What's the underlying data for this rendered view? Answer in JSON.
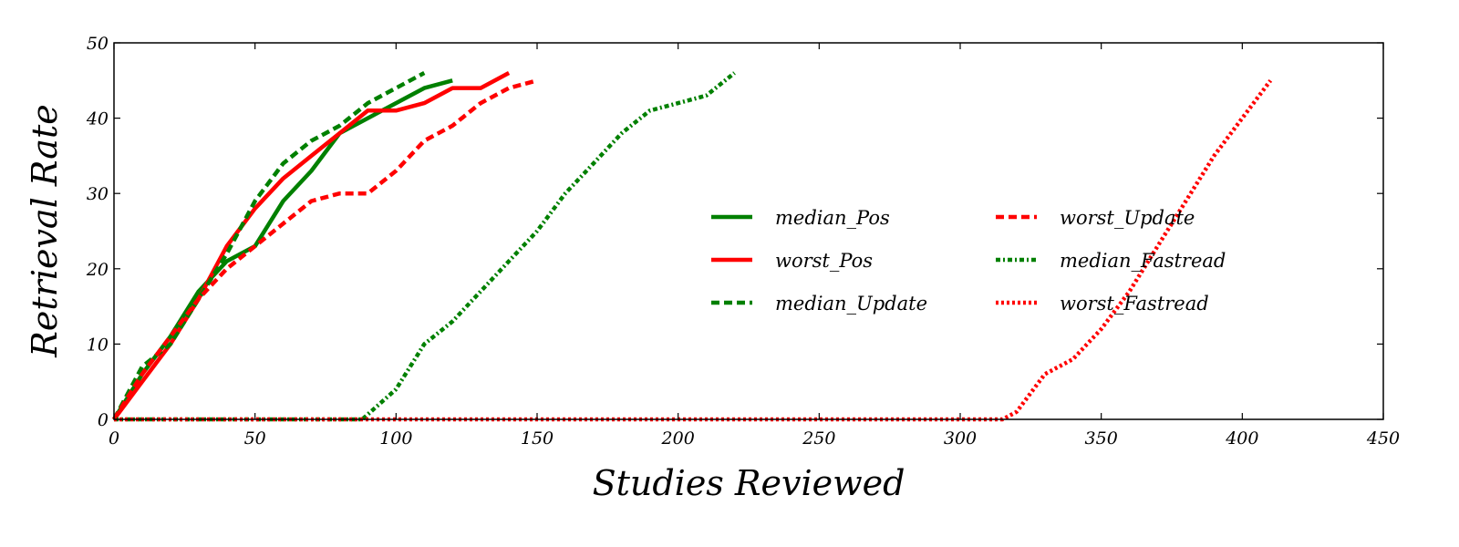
{
  "chart_data": {
    "type": "line",
    "title": "",
    "xlabel": "Studies Reviewed",
    "ylabel": "Retrieval Rate",
    "xlim": [
      0,
      450
    ],
    "ylim": [
      0,
      50
    ],
    "xticks": [
      0,
      50,
      100,
      150,
      200,
      250,
      300,
      350,
      400,
      450
    ],
    "yticks": [
      0,
      10,
      20,
      30,
      40,
      50
    ],
    "grid": false,
    "legend_position": "center-right",
    "legend_columns": 2,
    "series": [
      {
        "name": "median_Pos",
        "color": "#008000",
        "style": "solid",
        "x": [
          0,
          10,
          20,
          30,
          40,
          50,
          60,
          70,
          80,
          90,
          100,
          110,
          120
        ],
        "y": [
          0,
          6,
          11,
          17,
          21,
          23,
          29,
          33,
          38,
          40,
          42,
          44,
          45
        ]
      },
      {
        "name": "worst_Pos",
        "color": "#ff0000",
        "style": "solid",
        "x": [
          0,
          10,
          20,
          30,
          40,
          50,
          60,
          70,
          80,
          90,
          100,
          110,
          120,
          130,
          140
        ],
        "y": [
          0,
          5,
          10,
          16,
          23,
          28,
          32,
          35,
          38,
          41,
          41,
          42,
          44,
          44,
          46
        ]
      },
      {
        "name": "median_Update",
        "color": "#008000",
        "style": "dashed",
        "x": [
          0,
          10,
          20,
          30,
          40,
          50,
          60,
          70,
          80,
          90,
          100,
          110
        ],
        "y": [
          0,
          7,
          10,
          16,
          22,
          29,
          34,
          37,
          39,
          42,
          44,
          46
        ]
      },
      {
        "name": "worst_Update",
        "color": "#ff0000",
        "style": "dashed",
        "x": [
          0,
          10,
          20,
          30,
          40,
          50,
          60,
          70,
          80,
          90,
          100,
          110,
          120,
          130,
          140,
          150
        ],
        "y": [
          0,
          6,
          11,
          16,
          20,
          23,
          26,
          29,
          30,
          30,
          33,
          37,
          39,
          42,
          44,
          45
        ]
      },
      {
        "name": "median_Fastread",
        "color": "#008000",
        "style": "dashdot",
        "x": [
          0,
          80,
          88,
          100,
          110,
          120,
          130,
          140,
          150,
          160,
          170,
          180,
          190,
          200,
          210,
          220
        ],
        "y": [
          0,
          0,
          0,
          4,
          10,
          13,
          17,
          21,
          25,
          30,
          34,
          38,
          41,
          42,
          43,
          46
        ]
      },
      {
        "name": "worst_Fastread",
        "color": "#ff0000",
        "style": "dotted",
        "x": [
          0,
          310,
          315,
          320,
          330,
          340,
          350,
          360,
          370,
          380,
          390,
          400,
          410
        ],
        "y": [
          0,
          0,
          0,
          1,
          6,
          8,
          12,
          17,
          23,
          29,
          35,
          40,
          45
        ]
      }
    ]
  }
}
